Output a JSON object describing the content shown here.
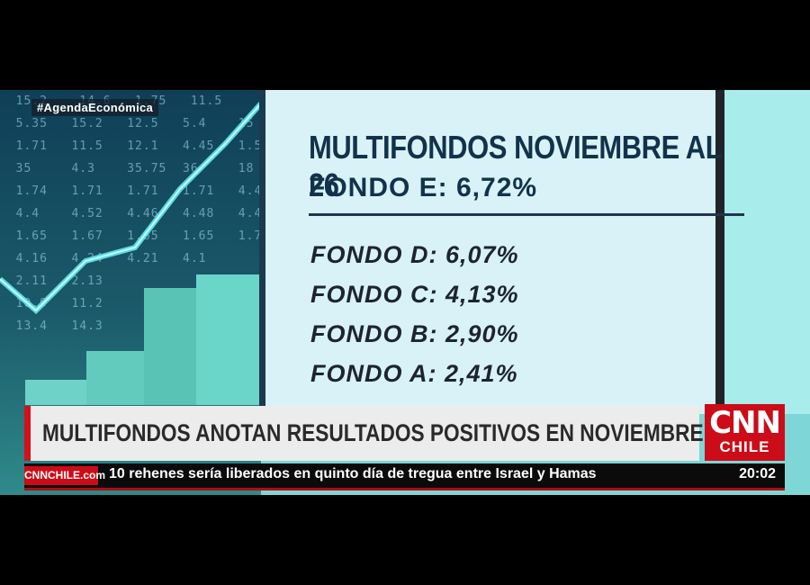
{
  "hashtag": "#AgendaEconómica",
  "card": {
    "title": "MULTIFONDOS NOVIEMBRE AL 26",
    "highlight": "FONDO E: 6,72%",
    "items": [
      {
        "label": "FONDO D: 6,07%"
      },
      {
        "label": "FONDO C: 4,13%"
      },
      {
        "label": "FONDO B: 2,90%"
      },
      {
        "label": "FONDO A: 2,41%"
      }
    ]
  },
  "headline": "MULTIFONDOS ANOTAN RESULTADOS POSITIVOS EN NOVIEMBRE",
  "brand": {
    "logo": "CNN",
    "sub": "CHILE",
    "ticker_logo": "CNNCHILE.com"
  },
  "ticker": {
    "text": "10 rehenes sería liberados en quinto día de tregua entre Israel y Hamas",
    "time": "20:02"
  },
  "colors": {
    "accent": "#cc0c18",
    "card_bg": "#d8f2f7",
    "title": "#12324c"
  }
}
